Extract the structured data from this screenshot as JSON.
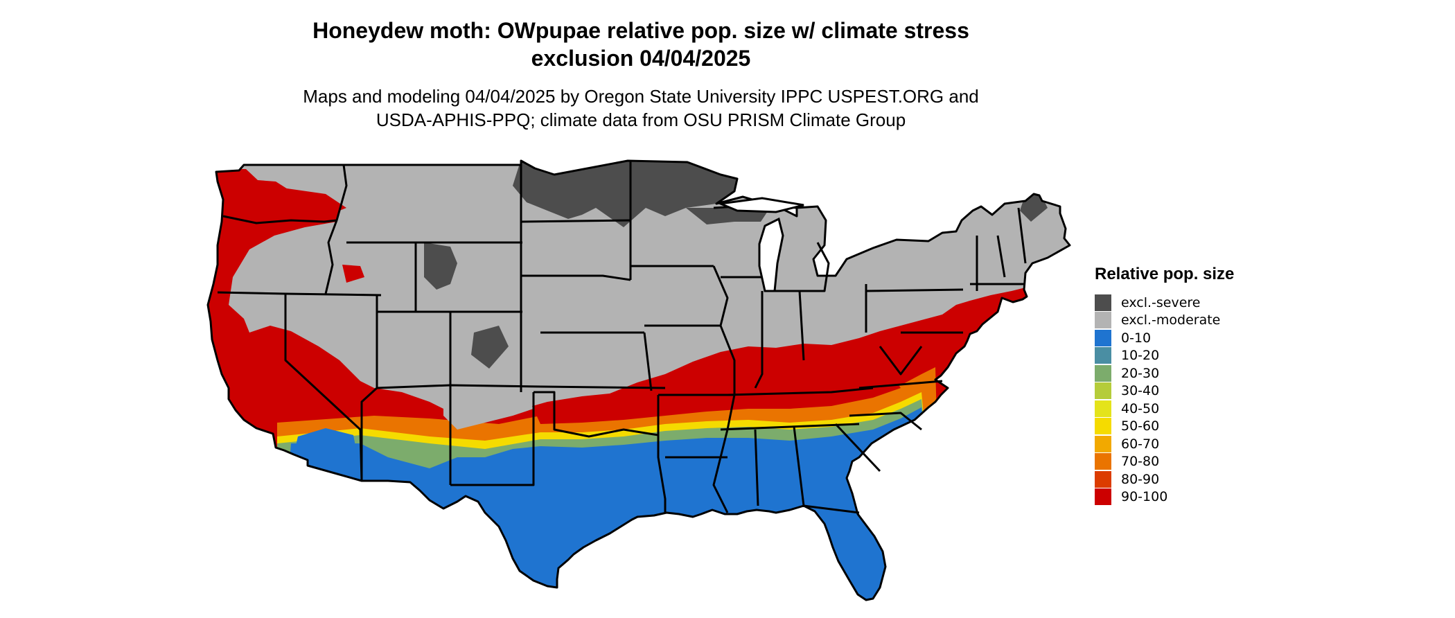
{
  "title": {
    "line1": "Honeydew moth: OWpupae relative pop. size w/ climate stress",
    "line2": "exclusion 04/04/2025"
  },
  "subtitle": {
    "line1": "Maps and modeling 04/04/2025 by Oregon State University IPPC USPEST.ORG and",
    "line2": "USDA-APHIS-PPQ; climate data from OSU PRISM Climate Group"
  },
  "legend": {
    "title": "Relative pop. size",
    "items": [
      {
        "label": "excl.-severe",
        "color": "#4d4d4d"
      },
      {
        "label": "excl.-moderate",
        "color": "#b3b3b3"
      },
      {
        "label": "0-10",
        "color": "#1f74d0"
      },
      {
        "label": "10-20",
        "color": "#4a8ea3"
      },
      {
        "label": "20-30",
        "color": "#7cac6c"
      },
      {
        "label": "30-40",
        "color": "#b5cc3a"
      },
      {
        "label": "40-50",
        "color": "#e4e31b"
      },
      {
        "label": "50-60",
        "color": "#f5db00"
      },
      {
        "label": "60-70",
        "color": "#f2a900"
      },
      {
        "label": "70-80",
        "color": "#ea7400"
      },
      {
        "label": "80-90",
        "color": "#dc3c00"
      },
      {
        "label": "90-100",
        "color": "#cc0000"
      }
    ]
  },
  "colors": {
    "state_border": "#000000",
    "water": "#ffffff"
  }
}
